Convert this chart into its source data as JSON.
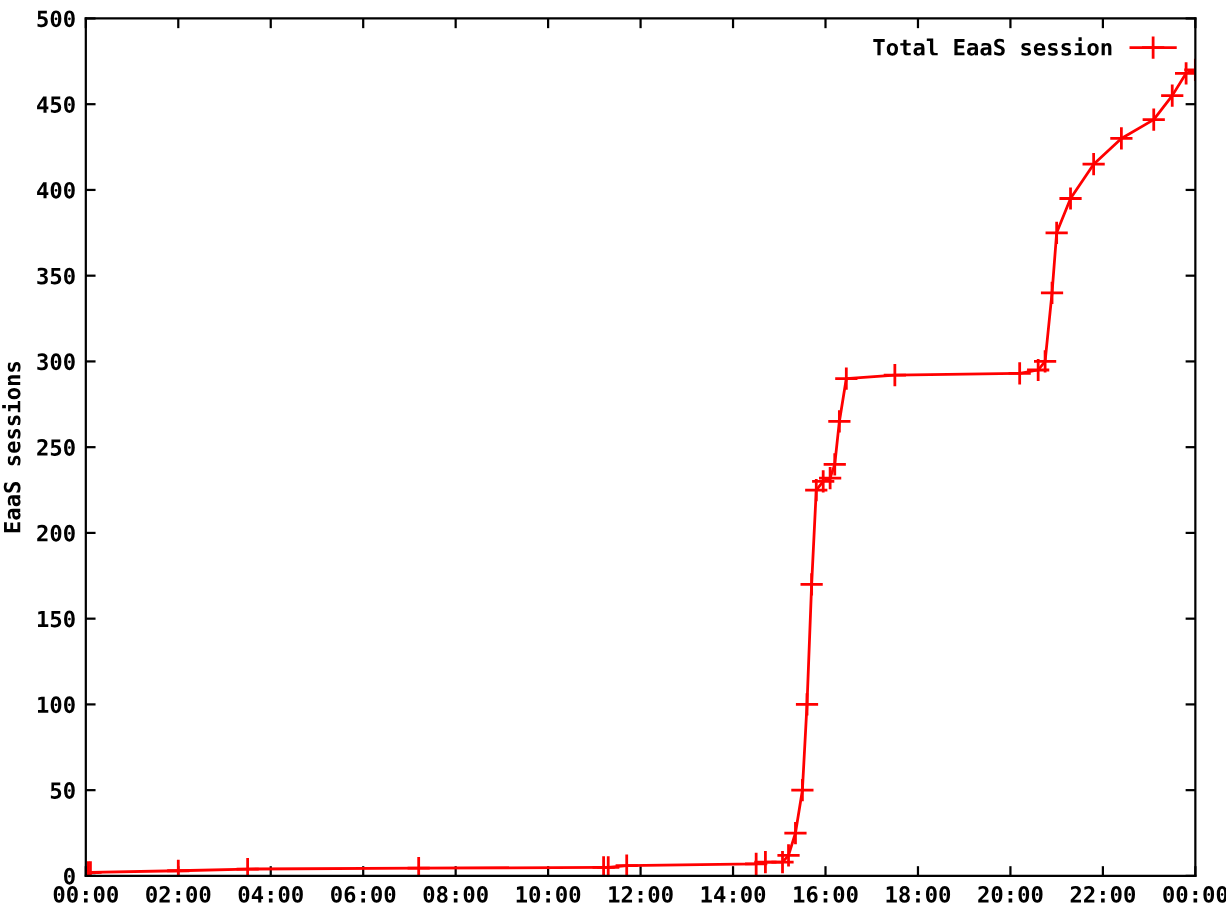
{
  "chart_data": {
    "type": "line",
    "ylabel": "EaaS sessions",
    "xlim": [
      0,
      24
    ],
    "ylim": [
      0,
      500
    ],
    "xticks": [
      {
        "value": 0,
        "label": "00:00"
      },
      {
        "value": 2,
        "label": "02:00"
      },
      {
        "value": 4,
        "label": "04:00"
      },
      {
        "value": 6,
        "label": "06:00"
      },
      {
        "value": 8,
        "label": "08:00"
      },
      {
        "value": 10,
        "label": "10:00"
      },
      {
        "value": 12,
        "label": "12:00"
      },
      {
        "value": 14,
        "label": "14:00"
      },
      {
        "value": 16,
        "label": "16:00"
      },
      {
        "value": 18,
        "label": "18:00"
      },
      {
        "value": 20,
        "label": "20:00"
      },
      {
        "value": 22,
        "label": "22:00"
      },
      {
        "value": 24,
        "label": "00:00"
      }
    ],
    "yticks": [
      0,
      50,
      100,
      150,
      200,
      250,
      300,
      350,
      400,
      450,
      500
    ],
    "grid": false,
    "legend": "top right",
    "marker": "cross",
    "line_style": "solid",
    "series": [
      {
        "name": "Total EaaS session",
        "color": "#ff0000",
        "x": [
          0.05,
          0.1,
          2,
          3.5,
          7.2,
          11.2,
          11.3,
          11.7,
          14.5,
          14.7,
          15.07,
          15.2,
          15.35,
          15.5,
          15.6,
          15.7,
          15.8,
          15.95,
          16.1,
          16.2,
          16.3,
          16.45,
          17.5,
          20.2,
          20.6,
          20.75,
          20.9,
          21.0,
          21.3,
          21.8,
          22.4,
          23.1,
          23.5,
          23.8,
          24
        ],
        "values": [
          2,
          2,
          3,
          4,
          4.5,
          5,
          5,
          6,
          7,
          8,
          8,
          12,
          25,
          50,
          100,
          170,
          225,
          230,
          232,
          240,
          265,
          290,
          292,
          293,
          295,
          300,
          340,
          375,
          395,
          415,
          430,
          441,
          455,
          468,
          470
        ]
      }
    ]
  }
}
